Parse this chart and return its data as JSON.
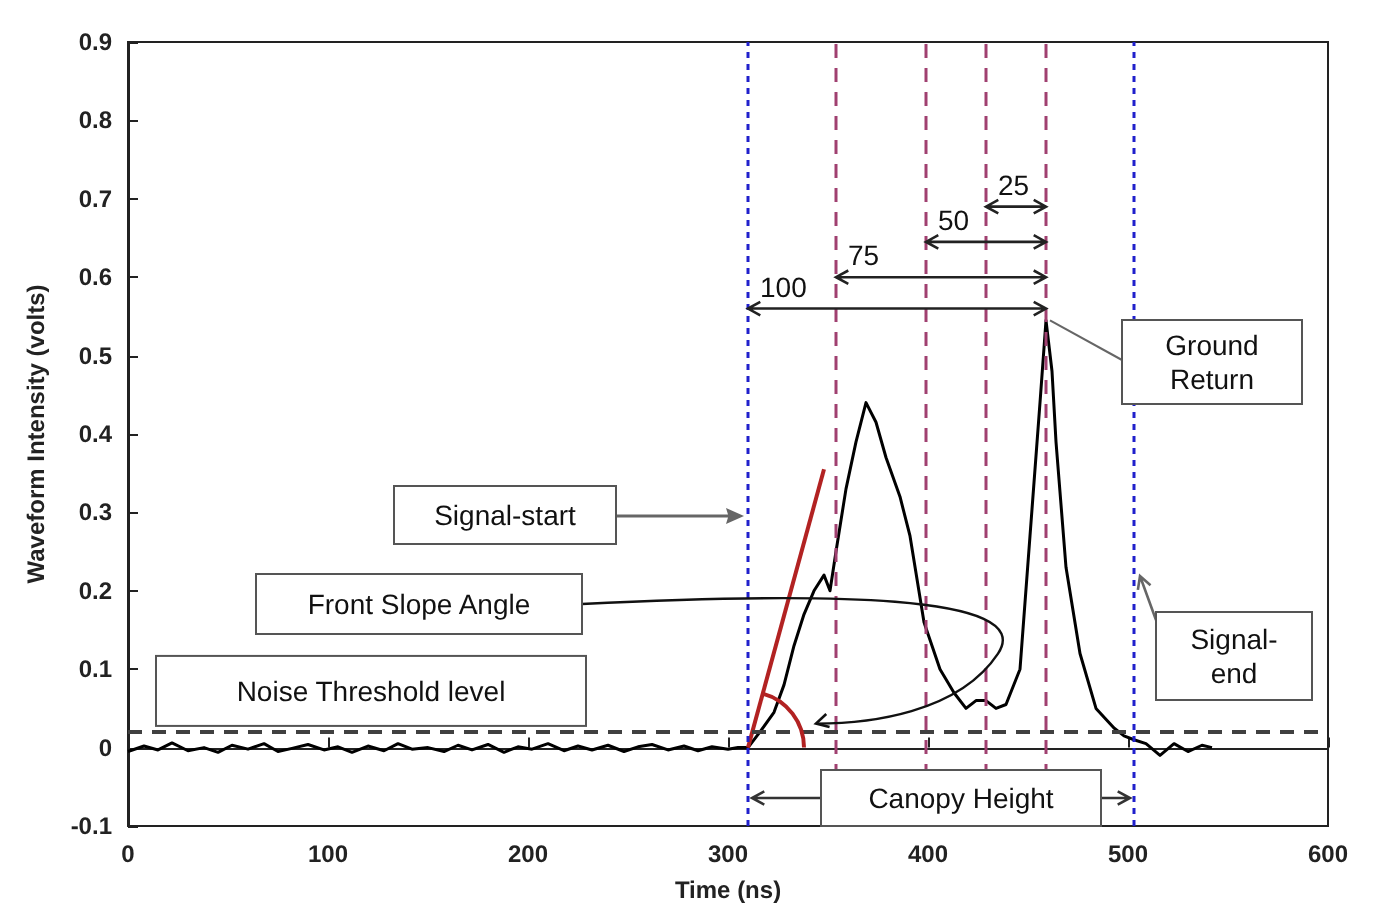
{
  "chart_data": {
    "type": "line",
    "xlabel": "Time (ns)",
    "ylabel": "Waveform Intensity (volts)",
    "xlim": [
      0,
      600
    ],
    "xticks": [
      0,
      100,
      200,
      300,
      400,
      500,
      600
    ],
    "ylim": [
      -0.1,
      0.9
    ],
    "yticks": [
      -0.1,
      0,
      0.1,
      0.2,
      0.3,
      0.4,
      0.5,
      0.6,
      0.7,
      0.8,
      0.9
    ],
    "grid": false,
    "marker": "none",
    "series": [
      {
        "color": "#000000",
        "x": [
          0,
          8,
          15,
          22,
          30,
          38,
          45,
          52,
          60,
          68,
          75,
          82,
          90,
          98,
          105,
          112,
          120,
          128,
          135,
          142,
          150,
          158,
          165,
          172,
          180,
          188,
          195,
          202,
          210,
          218,
          225,
          232,
          240,
          248,
          255,
          262,
          270,
          278,
          285,
          292,
          300,
          305,
          310,
          316,
          323,
          328,
          333,
          338,
          343,
          348,
          351,
          354,
          359,
          364,
          369,
          374,
          379,
          386,
          391,
          398,
          406,
          413,
          419,
          424,
          429,
          434,
          439,
          446,
          451,
          456,
          459,
          462,
          464,
          469,
          476,
          484,
          493,
          498,
          503,
          509,
          516,
          523,
          530,
          537,
          542
        ],
        "values": [
          -0.005,
          0.002,
          -0.003,
          0.006,
          -0.004,
          0.0,
          -0.006,
          0.003,
          -0.002,
          0.005,
          -0.005,
          -0.001,
          0.004,
          -0.003,
          0.001,
          -0.006,
          0.002,
          -0.004,
          0.005,
          -0.002,
          0.0,
          -0.005,
          0.003,
          -0.003,
          0.004,
          -0.006,
          0.001,
          -0.002,
          0.005,
          -0.004,
          0.002,
          -0.003,
          0.003,
          -0.005,
          0.001,
          0.004,
          -0.003,
          0.002,
          -0.004,
          0.001,
          -0.002,
          0.0,
          0.0,
          0.02,
          0.045,
          0.08,
          0.13,
          0.17,
          0.2,
          0.22,
          0.2,
          0.25,
          0.33,
          0.39,
          0.44,
          0.415,
          0.37,
          0.32,
          0.27,
          0.16,
          0.1,
          0.07,
          0.05,
          0.06,
          0.06,
          0.05,
          0.055,
          0.1,
          0.27,
          0.44,
          0.545,
          0.48,
          0.39,
          0.23,
          0.12,
          0.05,
          0.025,
          0.015,
          0.01,
          0.005,
          -0.01,
          0.005,
          -0.005,
          0.003,
          0
        ]
      },
      {
        "type": "line",
        "color": "#b22222",
        "x": [
          310,
          348
        ],
        "values": [
          0,
          0.355
        ]
      }
    ],
    "ref_lines": [
      {
        "axis": "x",
        "value": 310,
        "color": "#2020cc",
        "line_style": "dotted"
      },
      {
        "axis": "x",
        "value": 354,
        "color": "#a04070",
        "line_style": "dashed"
      },
      {
        "axis": "x",
        "value": 399,
        "color": "#a04070",
        "line_style": "dashed"
      },
      {
        "axis": "x",
        "value": 429,
        "color": "#a04070",
        "line_style": "dashed"
      },
      {
        "axis": "x",
        "value": 459,
        "color": "#a04070",
        "line_style": "dashed"
      },
      {
        "axis": "x",
        "value": 503,
        "color": "#2020cc",
        "line_style": "dotted"
      },
      {
        "axis": "y",
        "value": 0.02,
        "label": "Noise Threshold level",
        "color": "#404040",
        "line_style": "dashed"
      }
    ],
    "annotations": [
      {
        "text": "100",
        "x": 310,
        "y": 0.56
      },
      {
        "text": "75",
        "x": 354,
        "y": 0.6
      },
      {
        "text": "50",
        "x": 399,
        "y": 0.645
      },
      {
        "text": "25",
        "x": 429,
        "y": 0.69
      },
      "Ground Return",
      "Front Slope Angle",
      "Canopy Height",
      "Signal-start",
      "Signal-end"
    ]
  }
}
